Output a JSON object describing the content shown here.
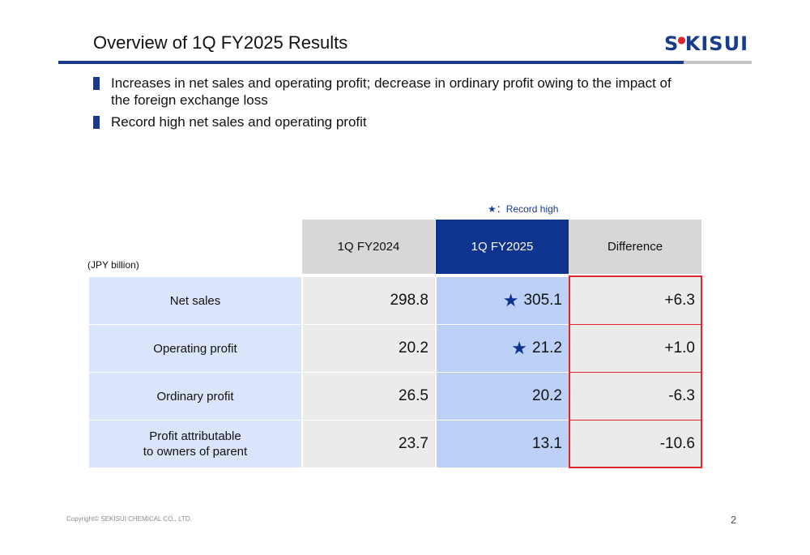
{
  "header": {
    "title": "Overview of 1Q FY2025 Results",
    "logo_part1": "S",
    "logo_part2": "KISUI",
    "logo_dot": "●"
  },
  "bullets": [
    "Increases in net sales and operating profit; decrease in ordinary profit owing to the impact of the foreign exchange loss",
    "Record high net sales and operating profit"
  ],
  "legend": "★：Record high",
  "table": {
    "unit": "(JPY billion)",
    "columns": [
      "1Q FY2024",
      "1Q FY2025",
      "Difference"
    ],
    "rows": [
      {
        "label": "Net sales",
        "prev": "298.8",
        "cur": "305.1",
        "diff": "+6.3",
        "record": "★"
      },
      {
        "label": "Operating profit",
        "prev": "20.2",
        "cur": "21.2",
        "diff": "+1.0",
        "record": "★"
      },
      {
        "label": "Ordinary profit",
        "prev": "26.5",
        "cur": "20.2",
        "diff": "-6.3",
        "record": ""
      },
      {
        "label_line1": "Profit attributable",
        "label_line2": "to owners of parent",
        "prev": "23.7",
        "cur": "13.1",
        "diff": "-10.6",
        "record": ""
      }
    ]
  },
  "footer": {
    "copyright": "Copyright© SEKISUI CHEMICAL CO., LTD.",
    "page_number": "2"
  },
  "colors": {
    "brand_blue": "#1a3a8e",
    "record_red": "#e0262d"
  }
}
